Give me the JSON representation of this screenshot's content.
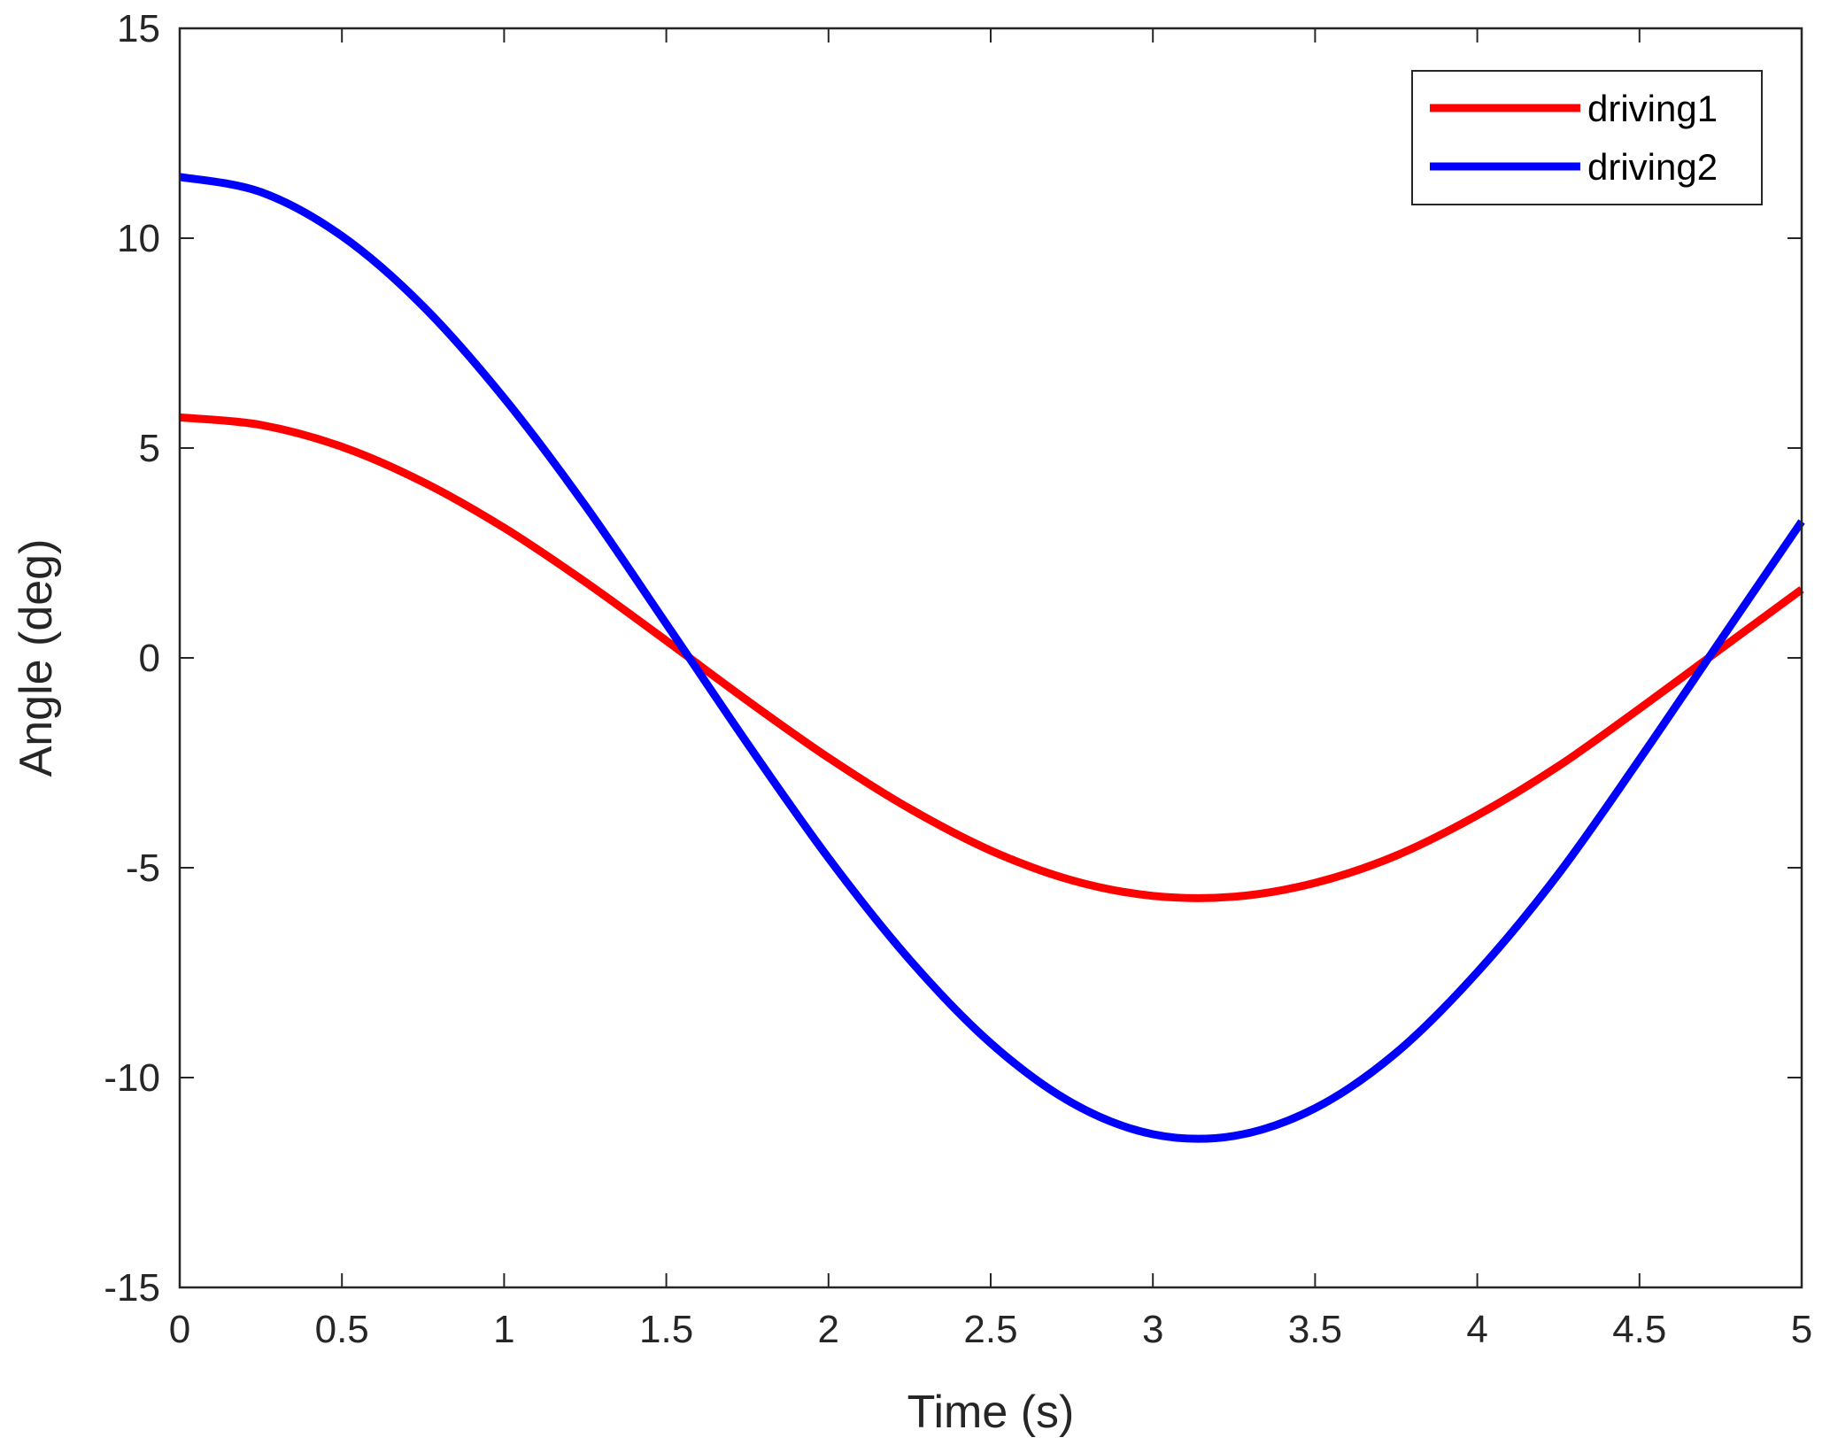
{
  "chart_data": {
    "type": "line",
    "title": "",
    "xlabel": "Time (s)",
    "ylabel": "Angle (deg)",
    "xlim": [
      0,
      5
    ],
    "ylim": [
      -15,
      15
    ],
    "xticks": [
      0,
      0.5,
      1,
      1.5,
      2,
      2.5,
      3,
      3.5,
      4,
      4.5,
      5
    ],
    "xtick_labels": [
      "0",
      "0.5",
      "1",
      "1.5",
      "2",
      "2.5",
      "3",
      "3.5",
      "4",
      "4.5",
      "5"
    ],
    "yticks": [
      -15,
      -10,
      -5,
      0,
      5,
      10,
      15
    ],
    "ytick_labels": [
      "-15",
      "-10",
      "-5",
      "0",
      "5",
      "10",
      "15"
    ],
    "grid": false,
    "legend_position": "top-right",
    "series": [
      {
        "name": "driving1",
        "color": "#ff0000",
        "x": [
          0,
          0.25,
          0.5,
          0.75,
          1,
          1.25,
          1.5,
          1.75,
          2,
          2.25,
          2.5,
          2.75,
          3,
          3.25,
          3.5,
          3.75,
          4,
          4.25,
          4.5,
          4.75,
          5
        ],
        "y": [
          5.73,
          5.55,
          5.03,
          4.19,
          3.1,
          1.81,
          0.41,
          -1.02,
          -2.38,
          -3.59,
          -4.59,
          -5.3,
          -5.67,
          -5.69,
          -5.36,
          -4.71,
          -3.75,
          -2.58,
          -1.21,
          0.21,
          1.63
        ]
      },
      {
        "name": "driving2",
        "color": "#0000ff",
        "x": [
          0,
          0.25,
          0.5,
          0.75,
          1,
          1.25,
          1.5,
          1.75,
          2,
          2.25,
          2.5,
          2.75,
          3,
          3.25,
          3.5,
          3.75,
          4,
          4.25,
          4.5,
          4.75,
          5
        ],
        "y": [
          11.46,
          11.1,
          10.05,
          8.38,
          6.19,
          3.63,
          0.81,
          -2.04,
          -4.77,
          -7.19,
          -9.18,
          -10.6,
          -11.35,
          -11.39,
          -10.73,
          -9.41,
          -7.49,
          -5.15,
          -2.42,
          0.42,
          3.25
        ]
      }
    ]
  }
}
